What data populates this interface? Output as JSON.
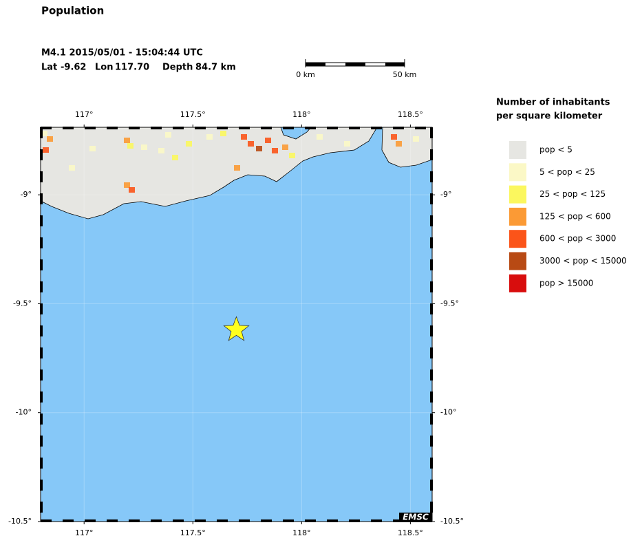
{
  "title": "Population",
  "event": {
    "line": "M4.1  2015/05/01 - 15:04:44 UTC",
    "lat_label": "Lat",
    "lat": -9.62,
    "lon_label": "Lon",
    "lon": {
      "value": 117.7,
      "label": "117.70"
    },
    "depth_label": "Depth",
    "depth_text": "84.7 km"
  },
  "map": {
    "xlim": [
      116.8,
      118.6
    ],
    "ylim": [
      -10.5,
      -8.69
    ],
    "xticks": [
      {
        "value": 117,
        "label": "117°"
      },
      {
        "value": 117.5,
        "label": "117.5°"
      },
      {
        "value": 118,
        "label": "118°"
      },
      {
        "value": 118.5,
        "label": "118.5°"
      }
    ],
    "yticks": [
      {
        "value": -9,
        "label": "-9°"
      },
      {
        "value": -9.5,
        "label": "-9.5°"
      },
      {
        "value": -10,
        "label": "-10°"
      },
      {
        "value": -10.5,
        "label": "-10.5°"
      }
    ],
    "credit": "EMSC"
  },
  "scale_bar": {
    "start_label": "0 km",
    "end_label": "50 km"
  },
  "legend": {
    "title_lines": [
      "Number of inhabitants",
      "per square kilometer"
    ],
    "items": [
      {
        "label": "pop < 5",
        "color": "#e6e6e2"
      },
      {
        "label": "5 < pop < 25",
        "color": "#fbf8c6"
      },
      {
        "label": "25 < pop < 125",
        "color": "#fbf75e"
      },
      {
        "label": "125 < pop < 600",
        "color": "#fb9a35"
      },
      {
        "label": "600 < pop < 3000",
        "color": "#fb5419"
      },
      {
        "label": "3000 < pop < 15000",
        "color": "#b84a14"
      },
      {
        "label": "pop > 15000",
        "color": "#d80d0d"
      }
    ]
  }
}
